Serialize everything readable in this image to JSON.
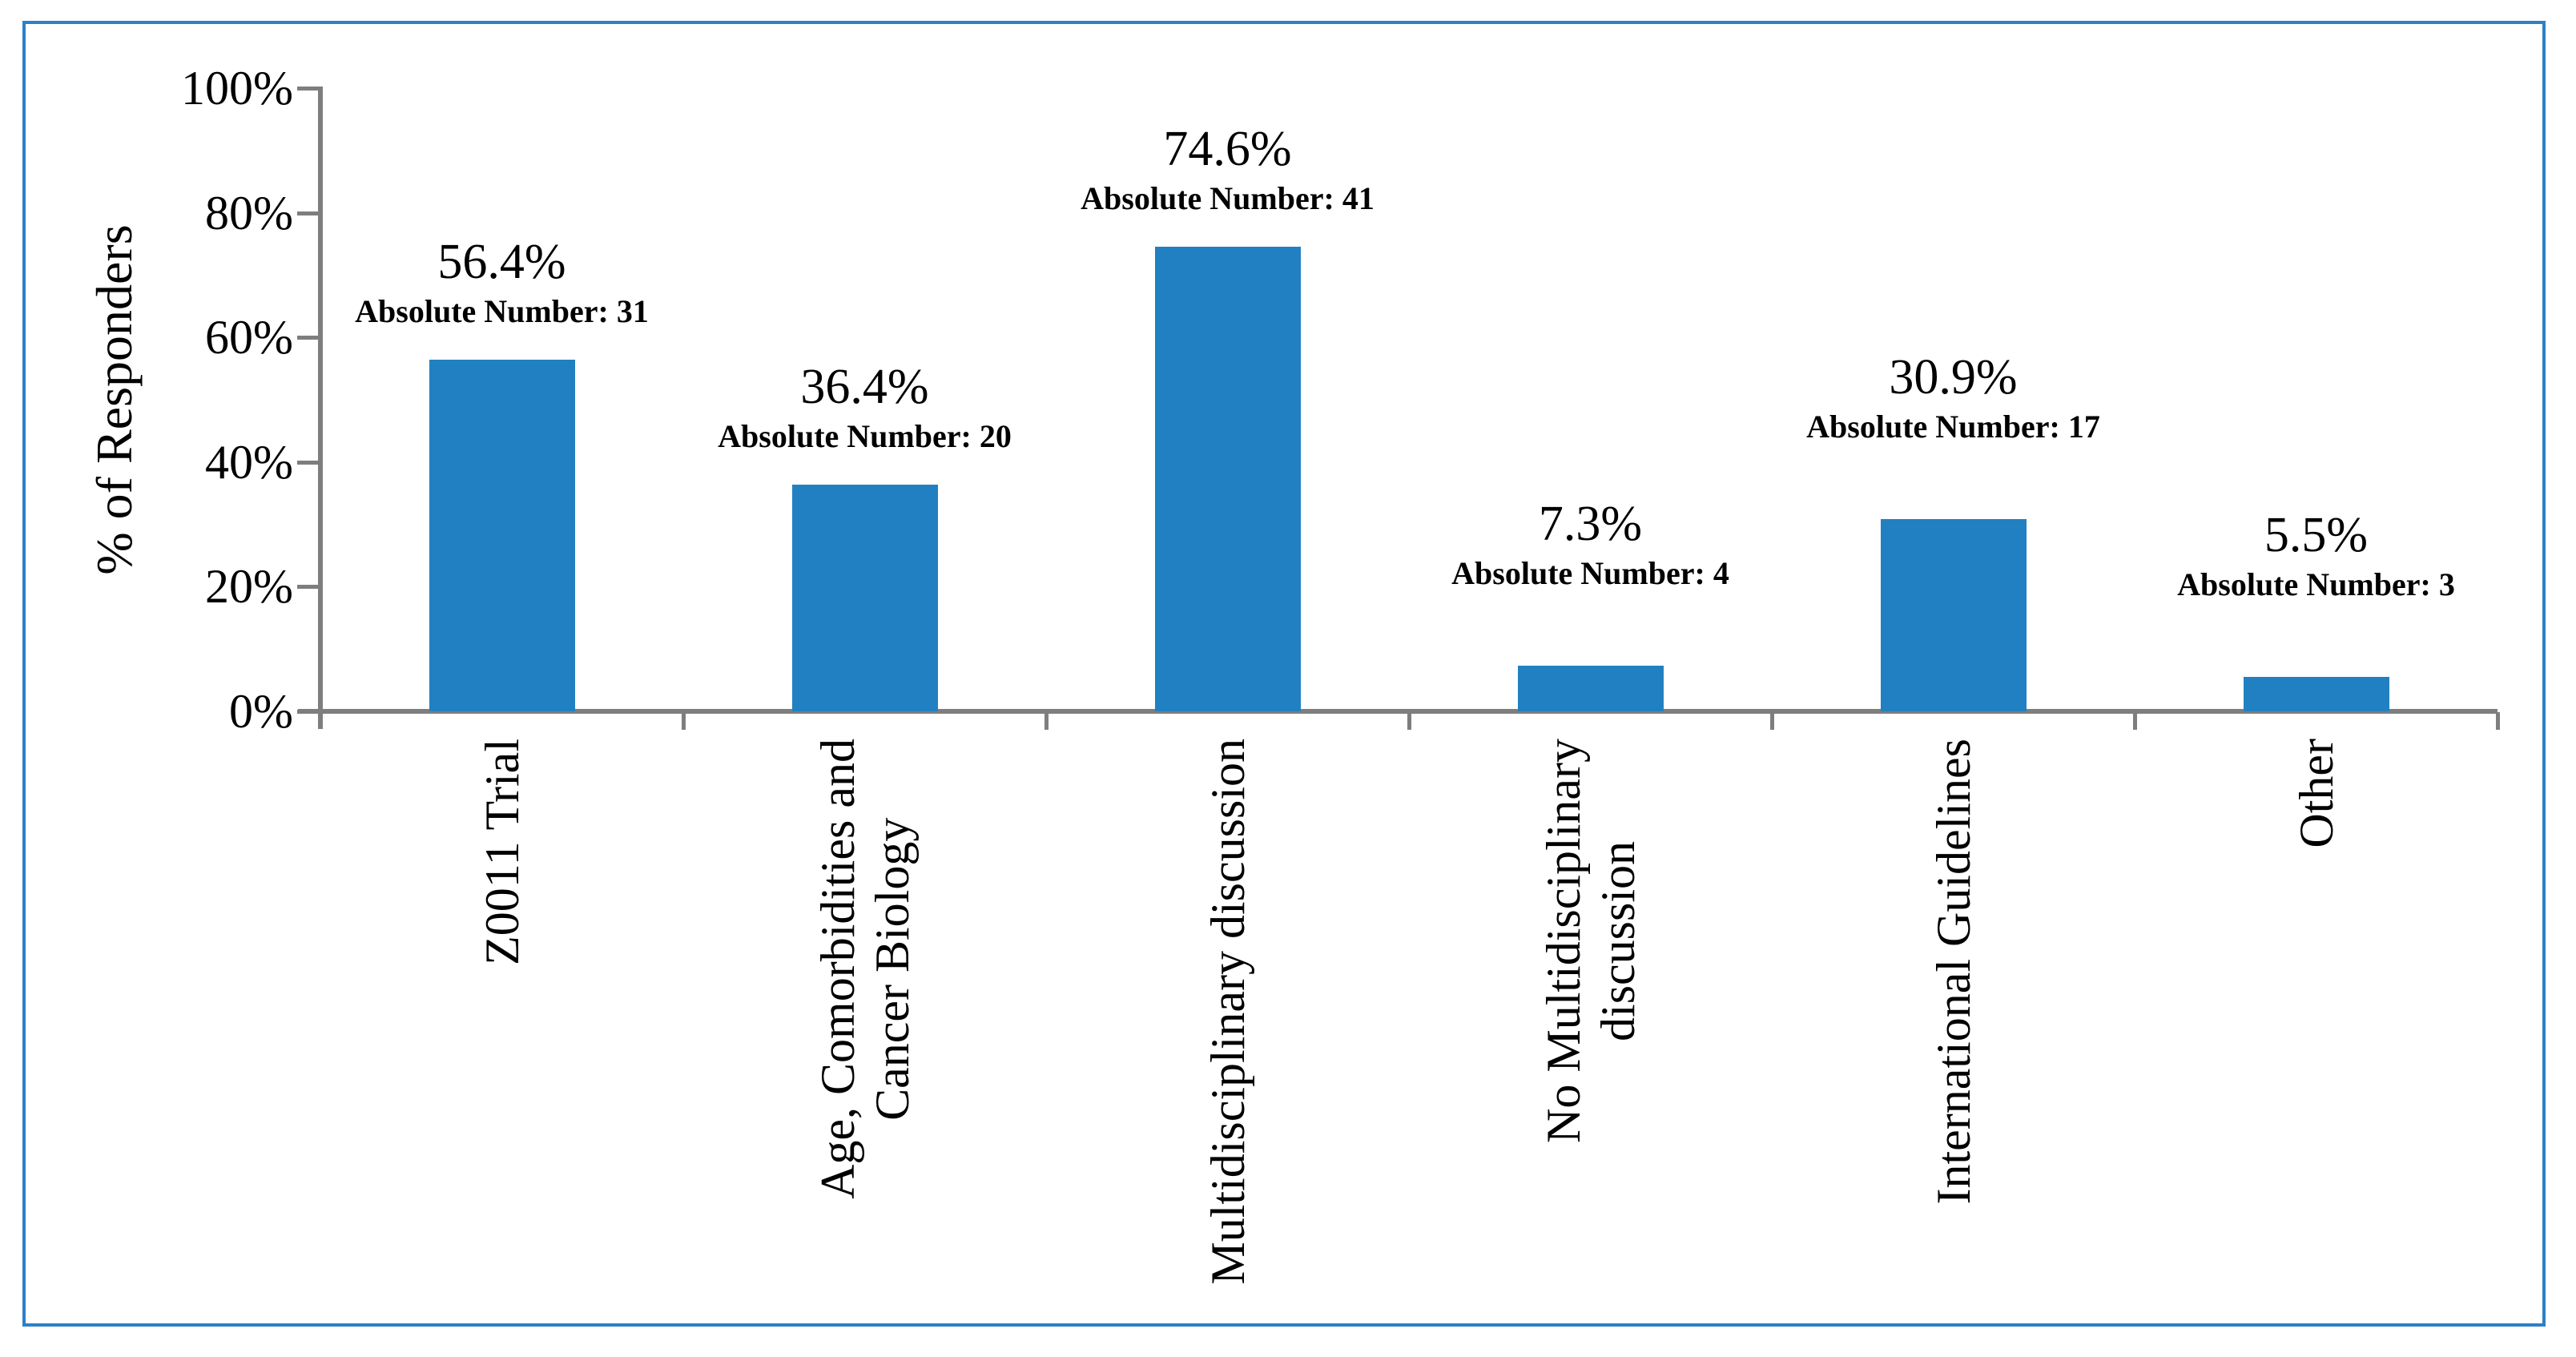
{
  "colors": {
    "bar": "#2180c1",
    "frame_border": "#2b80c6",
    "axis": "#7e7e7e",
    "text": "#000000"
  },
  "chart_data": {
    "type": "bar",
    "title": "",
    "xlabel": "",
    "ylabel": "% of Responders",
    "ylim": [
      0,
      100
    ],
    "y_tick_step": 20,
    "y_tick_labels": [
      "0%",
      "20%",
      "40%",
      "60%",
      "80%",
      "100%"
    ],
    "grid": false,
    "legend": null,
    "categories": [
      "Z0011 Trial",
      "Age, Comorbidities and Cancer Biology",
      "Multidisciplinary discussion",
      "No Multidisciplinary discussion",
      "International Guidelines",
      "Other"
    ],
    "categories_display": [
      "Z0011 Trial",
      "Age, Comorbidities and\nCancer Biology",
      "Multidisciplinary discussion",
      "No Multidisciplinary\ndiscussion",
      "International Guidelines",
      "Other"
    ],
    "values": [
      56.4,
      36.4,
      74.6,
      7.3,
      30.9,
      5.5
    ],
    "absolute_numbers": [
      31,
      20,
      41,
      4,
      17,
      3
    ],
    "data_labels": [
      {
        "percent": "56.4%",
        "absolute": "Absolute Number: 31"
      },
      {
        "percent": "36.4%",
        "absolute": "Absolute Number: 20"
      },
      {
        "percent": "74.6%",
        "absolute": "Absolute Number: 41"
      },
      {
        "percent": "7.3%",
        "absolute": "Absolute Number: 4"
      },
      {
        "percent": "30.9%",
        "absolute": "Absolute Number: 17"
      },
      {
        "percent": "5.5%",
        "absolute": "Absolute Number: 3"
      }
    ]
  }
}
